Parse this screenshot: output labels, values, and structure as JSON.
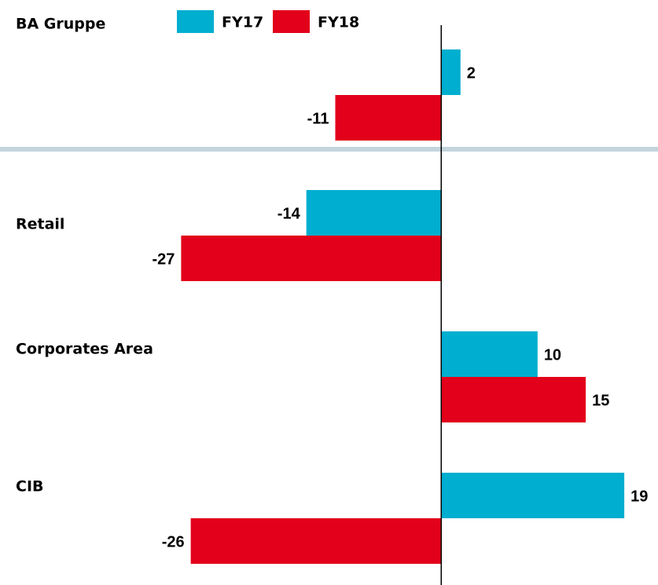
{
  "chart_data": {
    "type": "hbar",
    "categories": [
      "BA Gruppe",
      "Retail",
      "Corporates Area",
      "CIB"
    ],
    "series": [
      {
        "name": "FY17",
        "color": "#00aecf",
        "values": [
          2,
          -14,
          10,
          19
        ]
      },
      {
        "name": "FY18",
        "color": "#e2001a",
        "values": [
          -11,
          -27,
          15,
          -26
        ]
      }
    ],
    "xlim": [
      -45.8,
      22.5
    ]
  }
}
